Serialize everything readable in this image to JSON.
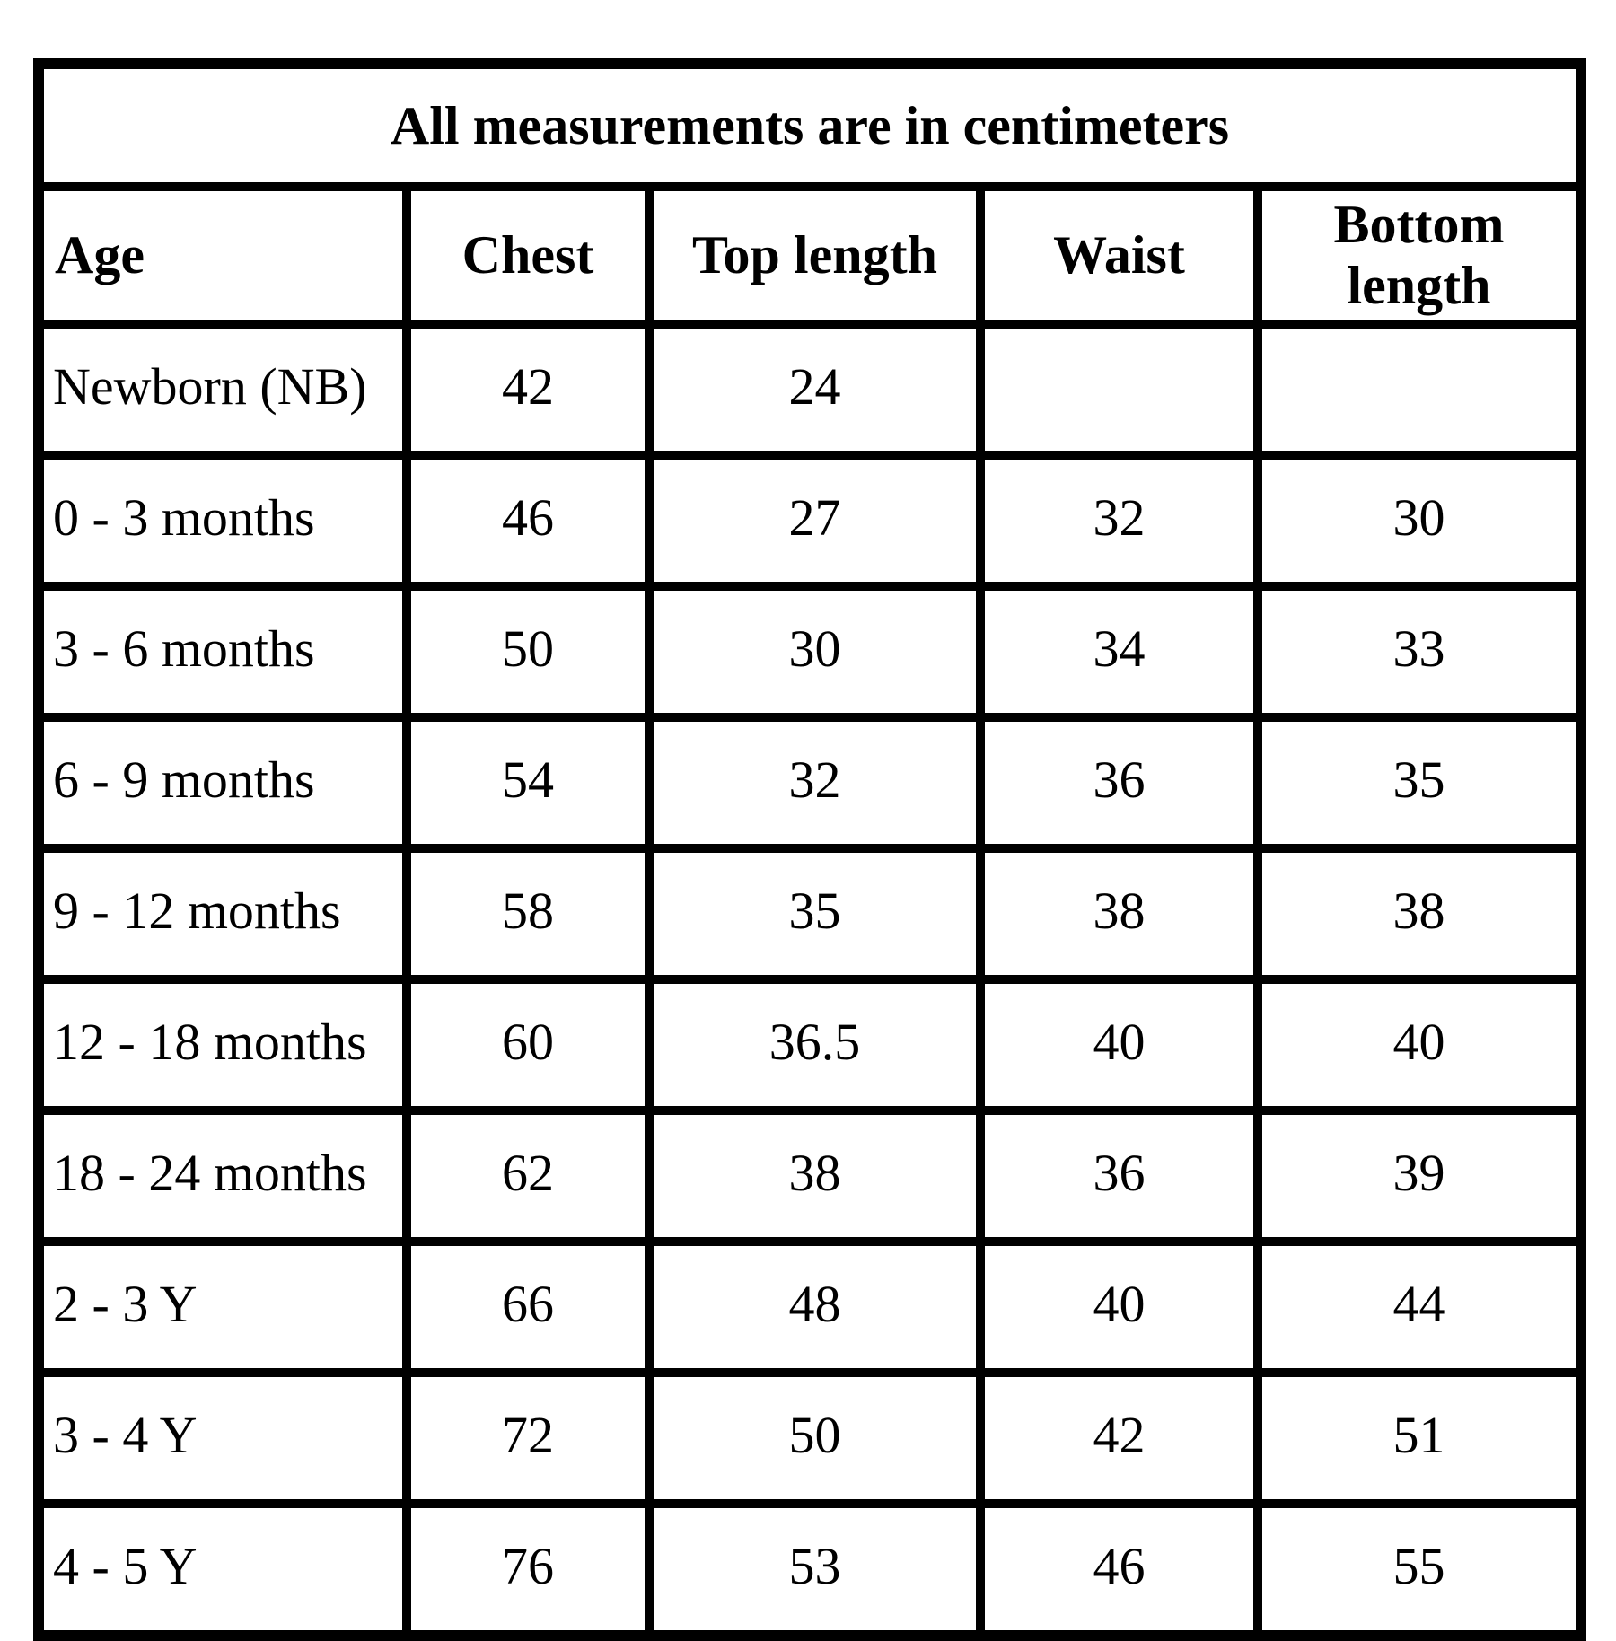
{
  "colors": {
    "background": "#ffffff",
    "border": "#000000",
    "text": "#000000"
  },
  "chart_data": {
    "type": "table",
    "title": "All measurements are in centimeters",
    "columns": [
      "Age",
      "Chest",
      "Top length",
      "Waist",
      "Bottom length"
    ],
    "rows": [
      [
        "Newborn (NB)",
        "42",
        "24",
        "",
        ""
      ],
      [
        "0 - 3 months",
        "46",
        "27",
        "32",
        "30"
      ],
      [
        "3 - 6 months",
        "50",
        "30",
        "34",
        "33"
      ],
      [
        "6 - 9 months",
        "54",
        "32",
        "36",
        "35"
      ],
      [
        "9 - 12 months",
        "58",
        "35",
        "38",
        "38"
      ],
      [
        "12 - 18 months",
        "60",
        "36.5",
        "40",
        "40"
      ],
      [
        "18 - 24 months",
        "62",
        "38",
        "36",
        "39"
      ],
      [
        "2 - 3 Y",
        "66",
        "48",
        "40",
        "44"
      ],
      [
        "3 - 4 Y",
        "72",
        "50",
        "42",
        "51"
      ],
      [
        "4 - 5 Y",
        "76",
        "53",
        "46",
        "55"
      ]
    ]
  }
}
